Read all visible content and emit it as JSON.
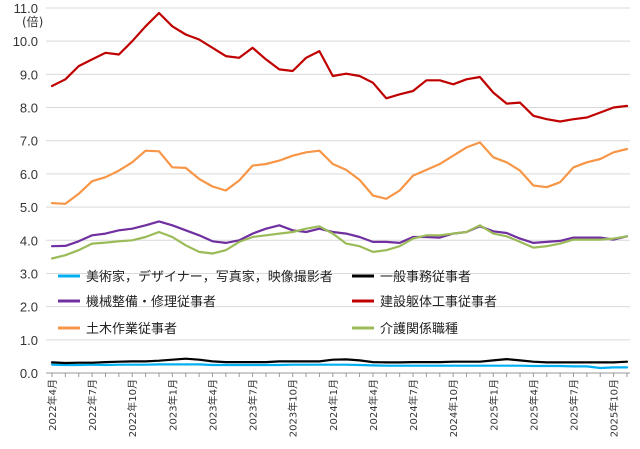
{
  "chart_data": {
    "type": "line",
    "title": "",
    "unit_label": "(倍)",
    "xlabel": "",
    "ylabel": "",
    "ylim": [
      0,
      11
    ],
    "y_ticks": [
      "0.0",
      "1.0",
      "2.0",
      "3.0",
      "4.0",
      "5.0",
      "6.0",
      "7.0",
      "8.0",
      "9.0",
      "10.0",
      "11.0"
    ],
    "grid": "horizontal",
    "x_tick_labels": [
      {
        "i": 0,
        "label": "2022年4月"
      },
      {
        "i": 3,
        "label": "2022年7月"
      },
      {
        "i": 6,
        "label": "2022年10月"
      },
      {
        "i": 9,
        "label": "2023年1月"
      },
      {
        "i": 12,
        "label": "2023年4月"
      },
      {
        "i": 15,
        "label": "2023年7月"
      },
      {
        "i": 18,
        "label": "2023年10月"
      },
      {
        "i": 21,
        "label": "2024年1月"
      },
      {
        "i": 24,
        "label": "2024年4月"
      },
      {
        "i": 27,
        "label": "2024年7月"
      },
      {
        "i": 30,
        "label": "2024年10月"
      },
      {
        "i": 33,
        "label": "2025年1月"
      },
      {
        "i": 36,
        "label": "2025年4月"
      },
      {
        "i": 39,
        "label": "2025年7月"
      },
      {
        "i": 42,
        "label": "2025年10月"
      }
    ],
    "n_points": 44,
    "series": [
      {
        "name": "美術家，デザイナー，写真家，映像撮影者",
        "color": "#00b0f0",
        "values": [
          0.25,
          0.24,
          0.24,
          0.25,
          0.24,
          0.25,
          0.25,
          0.25,
          0.26,
          0.26,
          0.26,
          0.26,
          0.24,
          0.24,
          0.24,
          0.24,
          0.24,
          0.24,
          0.25,
          0.25,
          0.25,
          0.25,
          0.25,
          0.24,
          0.23,
          0.22,
          0.22,
          0.22,
          0.22,
          0.22,
          0.22,
          0.22,
          0.22,
          0.22,
          0.22,
          0.22,
          0.21,
          0.21,
          0.21,
          0.2,
          0.2,
          0.15,
          0.17,
          0.17
        ]
      },
      {
        "name": "一般事務従事者",
        "color": "#000000",
        "values": [
          0.32,
          0.3,
          0.31,
          0.31,
          0.33,
          0.34,
          0.35,
          0.35,
          0.37,
          0.4,
          0.43,
          0.4,
          0.35,
          0.33,
          0.33,
          0.33,
          0.33,
          0.35,
          0.35,
          0.35,
          0.35,
          0.4,
          0.41,
          0.38,
          0.33,
          0.32,
          0.32,
          0.33,
          0.33,
          0.33,
          0.34,
          0.34,
          0.34,
          0.38,
          0.42,
          0.38,
          0.34,
          0.32,
          0.32,
          0.32,
          0.32,
          0.32,
          0.32,
          0.34
        ]
      },
      {
        "name": "機械整備・修理従事者",
        "color": "#7030a0",
        "values": [
          3.82,
          3.83,
          3.97,
          4.15,
          4.2,
          4.3,
          4.35,
          4.45,
          4.57,
          4.45,
          4.3,
          4.15,
          3.97,
          3.92,
          4.0,
          4.2,
          4.35,
          4.45,
          4.3,
          4.25,
          4.35,
          4.25,
          4.2,
          4.1,
          3.95,
          3.95,
          3.92,
          4.1,
          4.1,
          4.08,
          4.2,
          4.25,
          4.42,
          4.27,
          4.22,
          4.05,
          3.92,
          3.95,
          3.98,
          4.08,
          4.08,
          4.08,
          4.02,
          4.12
        ]
      },
      {
        "name": "建設躯体工事従事者",
        "color": "#c00000",
        "values": [
          8.65,
          8.85,
          9.25,
          9.45,
          9.65,
          9.6,
          10.0,
          10.45,
          10.85,
          10.45,
          10.2,
          10.05,
          9.8,
          9.55,
          9.5,
          9.8,
          9.45,
          9.15,
          9.1,
          9.5,
          9.7,
          8.95,
          9.02,
          8.95,
          8.75,
          8.28,
          8.4,
          8.5,
          8.82,
          8.82,
          8.7,
          8.85,
          8.92,
          8.45,
          8.12,
          8.15,
          7.75,
          7.65,
          7.58,
          7.65,
          7.7,
          7.85,
          8.0,
          8.05
        ]
      },
      {
        "name": "土木作業従事者",
        "color": "#f79646",
        "values": [
          5.12,
          5.1,
          5.4,
          5.78,
          5.9,
          6.1,
          6.35,
          6.7,
          6.68,
          6.2,
          6.18,
          5.85,
          5.62,
          5.5,
          5.8,
          6.25,
          6.3,
          6.4,
          6.55,
          6.65,
          6.7,
          6.3,
          6.12,
          5.82,
          5.35,
          5.25,
          5.5,
          5.95,
          6.12,
          6.3,
          6.55,
          6.8,
          6.95,
          6.5,
          6.35,
          6.1,
          5.65,
          5.6,
          5.75,
          6.2,
          6.35,
          6.45,
          6.65,
          6.75
        ]
      },
      {
        "name": "介護関係職種",
        "color": "#9bbb59",
        "values": [
          3.45,
          3.55,
          3.7,
          3.9,
          3.93,
          3.97,
          4.0,
          4.1,
          4.25,
          4.1,
          3.85,
          3.65,
          3.6,
          3.7,
          3.95,
          4.1,
          4.15,
          4.2,
          4.25,
          4.35,
          4.42,
          4.2,
          3.9,
          3.82,
          3.65,
          3.7,
          3.82,
          4.05,
          4.15,
          4.15,
          4.2,
          4.25,
          4.45,
          4.2,
          4.12,
          3.95,
          3.78,
          3.82,
          3.9,
          4.02,
          4.02,
          4.02,
          4.05,
          4.12
        ]
      }
    ],
    "legend": "inside-lower, two columns"
  }
}
